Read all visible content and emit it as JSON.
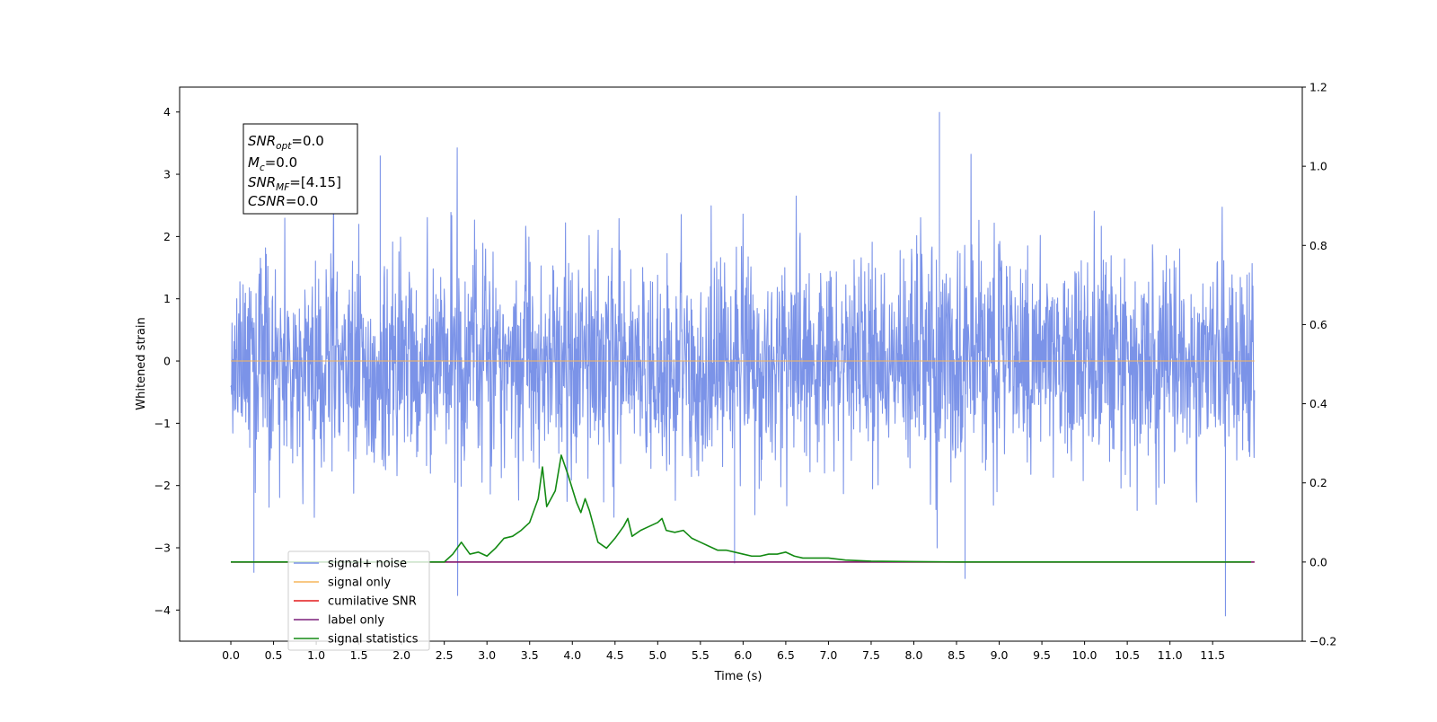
{
  "chart_data": {
    "type": "line",
    "xlabel": "Time (s)",
    "ylabel_left": "Whitened strain",
    "ylabel_right": "",
    "xlim": [
      -0.6,
      12.55
    ],
    "ylim_left": [
      -4.5,
      4.4
    ],
    "ylim_right": [
      -0.2,
      1.2
    ],
    "x_ticks": [
      "0.0",
      "0.5",
      "1.0",
      "1.5",
      "2.0",
      "2.5",
      "3.0",
      "3.5",
      "4.0",
      "4.5",
      "5.0",
      "5.5",
      "6.0",
      "6.5",
      "7.0",
      "7.5",
      "8.0",
      "8.5",
      "9.0",
      "9.5",
      "10.0",
      "10.5",
      "11.0",
      "11.5"
    ],
    "y_ticks_left": [
      "4",
      "3",
      "2",
      "1",
      "0",
      "−1",
      "−2",
      "−3",
      "−4"
    ],
    "y_ticks_right": [
      "1.2",
      "1.0",
      "0.8",
      "0.6",
      "0.4",
      "0.2",
      "0.0",
      "−0.2"
    ],
    "grid": false,
    "legend_placement": "lower-left",
    "annotation": {
      "snr_opt": {
        "sym": "SNR",
        "sub": "opt",
        "value": "=0.0"
      },
      "mc": {
        "sym": "M",
        "sub": "c",
        "value": "=0.0"
      },
      "snr_mf": {
        "sym": "SNR",
        "sub": "MF",
        "value": "=[4.15]"
      },
      "csnr": {
        "sym": "CSNR",
        "sub": "",
        "value": "=0.0"
      }
    },
    "series": [
      {
        "name": "signal+ noise",
        "color": "#7b93e8",
        "axis": "left",
        "kind": "noise",
        "x_range": [
          0.0,
          11.99
        ],
        "y_typical_range": [
          -2.5,
          2.5
        ],
        "y_extremes": [
          -4.1,
          4.0
        ]
      },
      {
        "name": "signal only",
        "color": "#f5b55b",
        "axis": "left",
        "kind": "constant",
        "x_range": [
          0.0,
          11.99
        ],
        "value": 0.0
      },
      {
        "name": "cumilative SNR",
        "color": "#e41a1c",
        "axis": "right",
        "kind": "constant",
        "x_range": [
          0.0,
          11.99
        ],
        "value": 0.0
      },
      {
        "name": "label only",
        "color": "#7b1e7a",
        "axis": "right",
        "kind": "constant",
        "x_range": [
          0.0,
          11.99
        ],
        "value": 0.0
      },
      {
        "name": "signal statistics",
        "color": "#138a13",
        "axis": "right",
        "kind": "line",
        "x": [
          0.0,
          2.5,
          2.6,
          2.7,
          2.8,
          2.9,
          3.0,
          3.1,
          3.2,
          3.3,
          3.4,
          3.5,
          3.6,
          3.65,
          3.7,
          3.8,
          3.87,
          3.95,
          4.05,
          4.1,
          4.15,
          4.2,
          4.3,
          4.4,
          4.5,
          4.6,
          4.65,
          4.7,
          4.8,
          4.9,
          5.0,
          5.05,
          5.1,
          5.2,
          5.3,
          5.4,
          5.5,
          5.6,
          5.7,
          5.8,
          5.9,
          6.0,
          6.1,
          6.2,
          6.3,
          6.4,
          6.5,
          6.6,
          6.7,
          6.8,
          7.0,
          7.2,
          7.5,
          8.0,
          8.5,
          11.95
        ],
        "y": [
          0.0,
          0.0,
          0.02,
          0.05,
          0.02,
          0.025,
          0.015,
          0.035,
          0.06,
          0.065,
          0.08,
          0.1,
          0.16,
          0.24,
          0.14,
          0.18,
          0.27,
          0.22,
          0.15,
          0.125,
          0.16,
          0.13,
          0.05,
          0.035,
          0.06,
          0.09,
          0.11,
          0.065,
          0.08,
          0.09,
          0.1,
          0.11,
          0.08,
          0.075,
          0.08,
          0.06,
          0.05,
          0.04,
          0.03,
          0.03,
          0.025,
          0.02,
          0.015,
          0.015,
          0.02,
          0.02,
          0.025,
          0.015,
          0.01,
          0.01,
          0.01,
          0.005,
          0.002,
          0.001,
          0.0,
          0.0
        ]
      }
    ]
  }
}
